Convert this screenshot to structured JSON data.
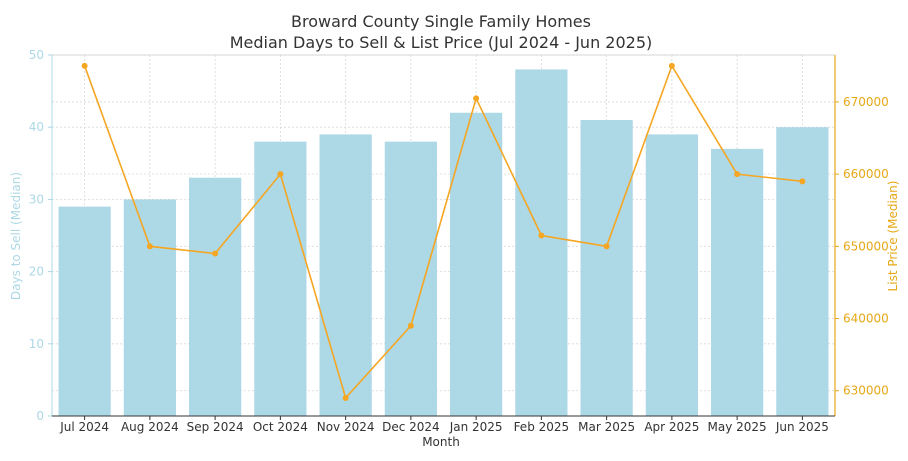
{
  "chart_data": {
    "type": "bar+line",
    "title_line1": "Broward County Single Family Homes",
    "title_line2": "Median Days to Sell & List Price (Jul 2024 - Jun 2025)",
    "xlabel": "Month",
    "ylabel_left": "Days to Sell (Median)",
    "ylabel_right": "List Price (Median)",
    "categories": [
      "Jul 2024",
      "Aug 2024",
      "Sep 2024",
      "Oct 2024",
      "Nov 2024",
      "Dec 2024",
      "Jan 2025",
      "Feb 2025",
      "Mar 2025",
      "Apr 2025",
      "May 2025",
      "Jun 2025"
    ],
    "series": [
      {
        "name": "Days to Sell (Median)",
        "kind": "bar",
        "axis": "left",
        "values": [
          29,
          30,
          33,
          38,
          39,
          38,
          42,
          48,
          41,
          39,
          37,
          40
        ]
      },
      {
        "name": "List Price (Median)",
        "kind": "line",
        "axis": "right",
        "values": [
          675000,
          650000,
          649000,
          660000,
          629000,
          639000,
          670500,
          651500,
          650000,
          675000,
          660000,
          659000
        ]
      }
    ],
    "ylim_left": [
      0,
      50
    ],
    "yticks_left": [
      0,
      10,
      20,
      30,
      40,
      50
    ],
    "ylim_right": [
      626500,
      676500
    ],
    "yticks_right": [
      630000,
      640000,
      650000,
      660000,
      670000
    ],
    "grid": true,
    "colors": {
      "bar": "#add8e6",
      "line": "#f5a623",
      "left_axis": "#add8e6",
      "right_axis": "#e6a817",
      "grid": "#d8d8d8",
      "text": "#333333"
    }
  }
}
